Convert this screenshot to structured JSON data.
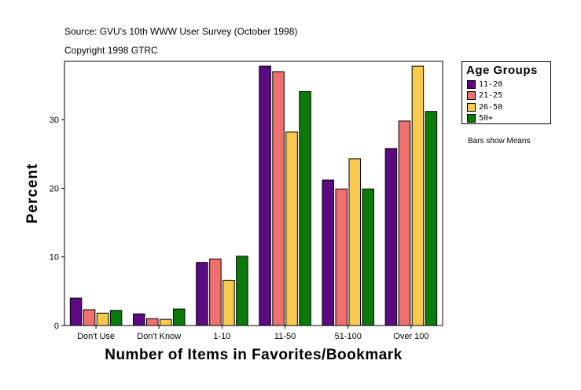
{
  "source_line": "Source: GVU's 10th WWW User Survey (October 1998)",
  "copyright_line": "Copyright 1998 GTRC",
  "note": "Bars show Means",
  "chart_data": {
    "type": "bar",
    "title": "",
    "xlabel": "Number of Items in Favorites/Bookmark",
    "ylabel": "Percent",
    "ylim": [
      0,
      38.5
    ],
    "yticks": [
      0,
      10,
      20,
      30
    ],
    "categories": [
      "Don't Use",
      "Don't Know",
      "1-10",
      "11-50",
      "51-100",
      "Over 100"
    ],
    "legend_title": "Age Groups",
    "legend_position": "right",
    "grid": false,
    "series": [
      {
        "name": "11-20",
        "color": "#5b0a82",
        "values": [
          4.0,
          1.7,
          9.2,
          37.8,
          21.2,
          25.8
        ]
      },
      {
        "name": "21-25",
        "color": "#f07070",
        "values": [
          2.3,
          1.0,
          9.7,
          37.0,
          19.9,
          29.8
        ]
      },
      {
        "name": "26-50",
        "color": "#f7c94c",
        "values": [
          1.8,
          0.9,
          6.6,
          28.2,
          24.3,
          37.8
        ]
      },
      {
        "name": "50+",
        "color": "#0a7a0a",
        "values": [
          2.2,
          2.4,
          10.1,
          34.1,
          19.9,
          31.2
        ]
      }
    ]
  }
}
